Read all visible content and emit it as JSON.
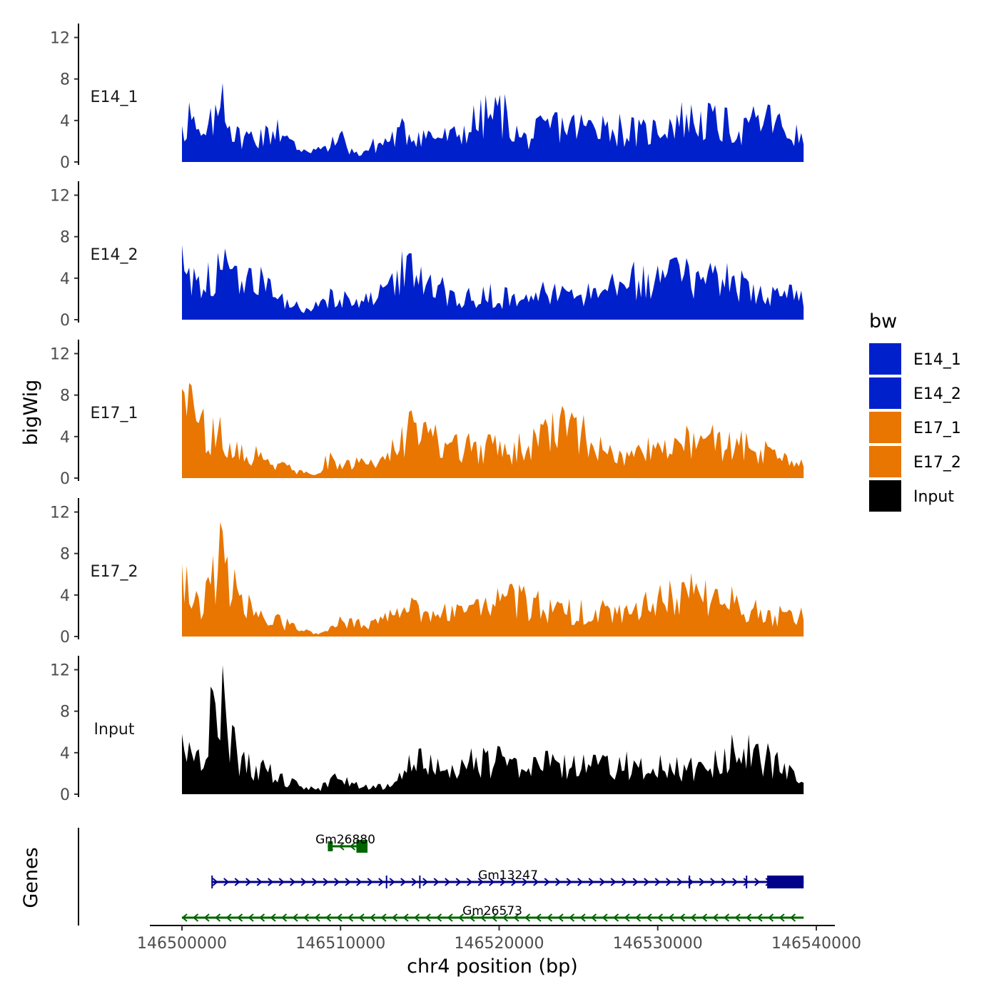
{
  "chart_data": {
    "type": "area",
    "chromosome": "chr4",
    "xlabel": "chr4 position (bp)",
    "ylabel_tracks": "bigWig",
    "ylabel_genes": "Genes",
    "xlim": [
      146500000,
      146539200
    ],
    "x_ticks": [
      146500000,
      146510000,
      146520000,
      146530000,
      146540000
    ],
    "x_tick_labels": [
      "146500000",
      "146510000",
      "146520000",
      "146530000",
      "146540000"
    ],
    "ylim": [
      0,
      13
    ],
    "y_ticks": [
      0,
      4,
      8,
      12
    ],
    "y_tick_labels": [
      "0",
      "4",
      "8",
      "12"
    ],
    "legend": {
      "title": "bw",
      "position": "right",
      "entries": [
        {
          "label": "E14_1",
          "color": "#0020CC"
        },
        {
          "label": "E14_2",
          "color": "#0020CC"
        },
        {
          "label": "E17_1",
          "color": "#E87600"
        },
        {
          "label": "E17_2",
          "color": "#E87600"
        },
        {
          "label": "Input",
          "color": "#000000"
        }
      ]
    },
    "series": [
      {
        "name": "E14_1",
        "label": "E14_1",
        "color": "#0020CC",
        "peaks": [
          [
            146500000,
            3.5
          ],
          [
            146500500,
            6.0
          ],
          [
            146501200,
            2.5
          ],
          [
            146502100,
            5.5
          ],
          [
            146502600,
            7.8
          ],
          [
            146503000,
            3.5
          ],
          [
            146505000,
            3.2
          ],
          [
            146506000,
            4.2
          ],
          [
            146507000,
            2.0
          ],
          [
            146509000,
            1.5
          ],
          [
            146510000,
            2.8
          ],
          [
            146511000,
            1.0
          ],
          [
            146514000,
            3.8
          ],
          [
            146517000,
            3.2
          ],
          [
            146520000,
            6.6
          ],
          [
            146521500,
            2.8
          ],
          [
            146523500,
            4.8
          ],
          [
            146526500,
            4.5
          ],
          [
            146529000,
            3.5
          ],
          [
            146531500,
            5.8
          ],
          [
            146533500,
            4.8
          ],
          [
            146535500,
            4.2
          ],
          [
            146537000,
            5.6
          ],
          [
            146539000,
            2.8
          ]
        ]
      },
      {
        "name": "E14_2",
        "label": "E14_2",
        "color": "#0020CC",
        "peaks": [
          [
            146500000,
            7.2
          ],
          [
            146500500,
            4.8
          ],
          [
            146502300,
            6.5
          ],
          [
            146503300,
            5.2
          ],
          [
            146504300,
            5.0
          ],
          [
            146505500,
            4.0
          ],
          [
            146506600,
            2.0
          ],
          [
            146508000,
            1.0
          ],
          [
            146509500,
            2.8
          ],
          [
            146511000,
            2.0
          ],
          [
            146514400,
            6.5
          ],
          [
            146517000,
            2.8
          ],
          [
            146519000,
            3.2
          ],
          [
            146521000,
            2.5
          ],
          [
            146523500,
            3.5
          ],
          [
            146526000,
            3.0
          ],
          [
            146528300,
            4.8
          ],
          [
            146531000,
            6.0
          ],
          [
            146533300,
            5.5
          ],
          [
            146535500,
            4.0
          ],
          [
            146537200,
            3.2
          ],
          [
            146539000,
            2.8
          ]
        ]
      },
      {
        "name": "E17_1",
        "label": "E17_1",
        "color": "#E87600",
        "peaks": [
          [
            146500000,
            8.6
          ],
          [
            146501300,
            6.8
          ],
          [
            146502000,
            5.8
          ],
          [
            146503500,
            3.5
          ],
          [
            146505000,
            2.5
          ],
          [
            146507500,
            0.8
          ],
          [
            146508500,
            0.3
          ],
          [
            146509000,
            2.2
          ],
          [
            146511000,
            2.0
          ],
          [
            146513000,
            2.5
          ],
          [
            146514400,
            6.6
          ],
          [
            146516000,
            5.2
          ],
          [
            146518000,
            3.8
          ],
          [
            146521000,
            3.5
          ],
          [
            146524000,
            7.0
          ],
          [
            146527000,
            3.2
          ],
          [
            146530000,
            3.5
          ],
          [
            146532000,
            4.5
          ],
          [
            146534500,
            4.5
          ],
          [
            146537000,
            3.0
          ],
          [
            146539000,
            1.8
          ]
        ]
      },
      {
        "name": "E17_2",
        "label": "E17_2",
        "color": "#E87600",
        "peaks": [
          [
            146500000,
            7.0
          ],
          [
            146501000,
            3.5
          ],
          [
            146502000,
            8.0
          ],
          [
            146502600,
            10.3
          ],
          [
            146503500,
            4.5
          ],
          [
            146505000,
            2.5
          ],
          [
            146507000,
            1.3
          ],
          [
            146508500,
            0.3
          ],
          [
            146510000,
            2.0
          ],
          [
            146512000,
            1.5
          ],
          [
            146514500,
            3.8
          ],
          [
            146517000,
            3.0
          ],
          [
            146521000,
            4.5
          ],
          [
            146524000,
            3.2
          ],
          [
            146528000,
            3.0
          ],
          [
            146531500,
            5.2
          ],
          [
            146533000,
            5.5
          ],
          [
            146535000,
            4.0
          ],
          [
            146537000,
            2.5
          ],
          [
            146539000,
            2.8
          ]
        ]
      },
      {
        "name": "Input",
        "label": "Input",
        "color": "#000000",
        "peaks": [
          [
            146500000,
            5.8
          ],
          [
            146501000,
            4.0
          ],
          [
            146502000,
            10.2
          ],
          [
            146502600,
            12.6
          ],
          [
            146503500,
            3.8
          ],
          [
            146505000,
            3.0
          ],
          [
            146507000,
            1.5
          ],
          [
            146508500,
            0.4
          ],
          [
            146509500,
            1.8
          ],
          [
            146511000,
            1.2
          ],
          [
            146513000,
            1.0
          ],
          [
            146515000,
            4.5
          ],
          [
            146517000,
            2.8
          ],
          [
            146519000,
            4.5
          ],
          [
            146521000,
            3.5
          ],
          [
            146523000,
            4.2
          ],
          [
            146526000,
            3.8
          ],
          [
            146529000,
            3.5
          ],
          [
            146532000,
            3.0
          ],
          [
            146535700,
            5.8
          ],
          [
            146538000,
            3.0
          ],
          [
            146539000,
            1.2
          ]
        ]
      }
    ],
    "genes": [
      {
        "name": "Gm26880",
        "strand": "-",
        "color": "#006400",
        "start": 146509200,
        "end": 146511700,
        "exons": [
          [
            146509200,
            146509500
          ],
          [
            146511000,
            146511700
          ]
        ],
        "row": 1
      },
      {
        "name": "Gm13247",
        "strand": "+",
        "color": "#00008B",
        "start": 146501900,
        "end": 146539200,
        "exons": [
          [
            146536900,
            146539200
          ]
        ],
        "row": 2
      },
      {
        "name": "Gm26573",
        "strand": "-",
        "color": "#006400",
        "start": 146500000,
        "end": 146539200,
        "exons": [],
        "row": 3
      }
    ]
  }
}
